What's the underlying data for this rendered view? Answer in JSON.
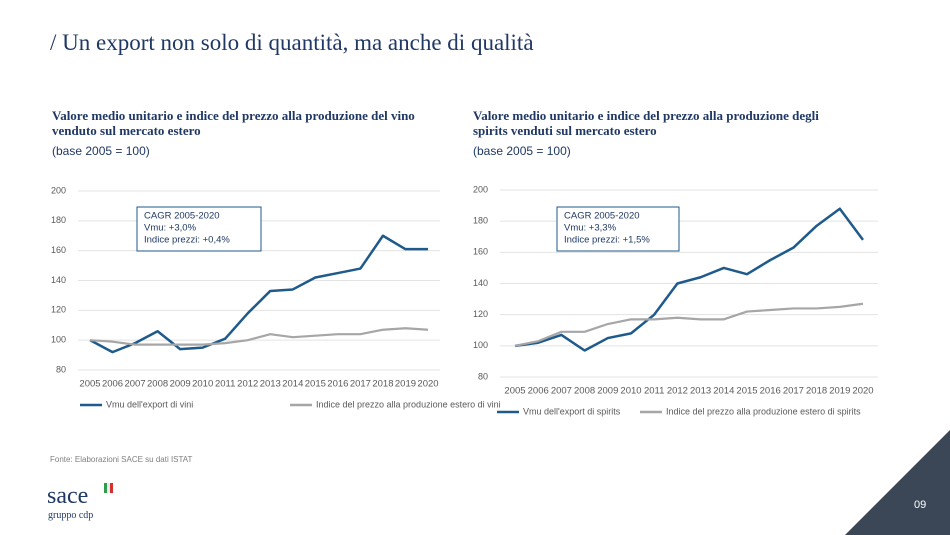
{
  "header": {
    "title": "/ Un export non solo di quantità, ma anche di qualità"
  },
  "chart_data": [
    {
      "type": "line",
      "title": "Valore medio unitario e indice del prezzo alla produzione del vino venduto sul mercato estero",
      "subtitle": "(base 2005 = 100)",
      "annotations": [
        "CAGR 2005-2020",
        "Vmu: +3,0%",
        "Indice prezzi: +0,4%"
      ],
      "categories": [
        "2005",
        "2006",
        "2007",
        "2008",
        "2009",
        "2010",
        "2011",
        "2012",
        "2013",
        "2014",
        "2015",
        "2016",
        "2017",
        "2018",
        "2019",
        "2020"
      ],
      "series": [
        {
          "name": "Vmu dell'export di vini",
          "color": "#1f5a8c",
          "values": [
            100,
            92,
            98,
            106,
            94,
            95,
            101,
            118,
            133,
            134,
            142,
            145,
            148,
            170,
            161,
            161
          ]
        },
        {
          "name": "Indice del prezzo alla produzione estero di vini",
          "color": "#a6a6a6",
          "values": [
            100,
            99,
            97,
            97,
            97,
            97,
            98,
            100,
            104,
            102,
            103,
            104,
            104,
            107,
            108,
            107
          ]
        }
      ],
      "ylim": [
        80,
        200
      ],
      "yticks": [
        80,
        100,
        120,
        140,
        160,
        180,
        200
      ],
      "grid": true,
      "legend": "bottom"
    },
    {
      "type": "line",
      "title": "Valore medio unitario e indice del prezzo alla produzione degli spirits venduti sul mercato estero",
      "subtitle": "(base 2005 = 100)",
      "annotations": [
        "CAGR 2005-2020",
        "Vmu: +3,3%",
        "Indice prezzi: +1,5%"
      ],
      "categories": [
        "2005",
        "2006",
        "2007",
        "2008",
        "2009",
        "2010",
        "2011",
        "2012",
        "2013",
        "2014",
        "2015",
        "2016",
        "2017",
        "2018",
        "2019",
        "2020"
      ],
      "series": [
        {
          "name": "Vmu dell'export di spirits",
          "color": "#1f5a8c",
          "values": [
            100,
            102,
            107,
            97,
            105,
            108,
            120,
            140,
            144,
            150,
            146,
            155,
            163,
            177,
            188,
            168
          ]
        },
        {
          "name": "Indice del prezzo alla produzione estero di spirits",
          "color": "#a6a6a6",
          "values": [
            100,
            103,
            109,
            109,
            114,
            117,
            117,
            118,
            117,
            117,
            122,
            123,
            124,
            124,
            125,
            127
          ]
        }
      ],
      "ylim": [
        80,
        200
      ],
      "yticks": [
        80,
        100,
        120,
        140,
        160,
        180,
        200
      ],
      "grid": true,
      "legend": "bottom"
    }
  ],
  "footer": {
    "source": "Fonte: Elaborazioni SACE su dati ISTAT",
    "logo": "sace",
    "logo_sub": "gruppo cdp",
    "page": "09"
  }
}
